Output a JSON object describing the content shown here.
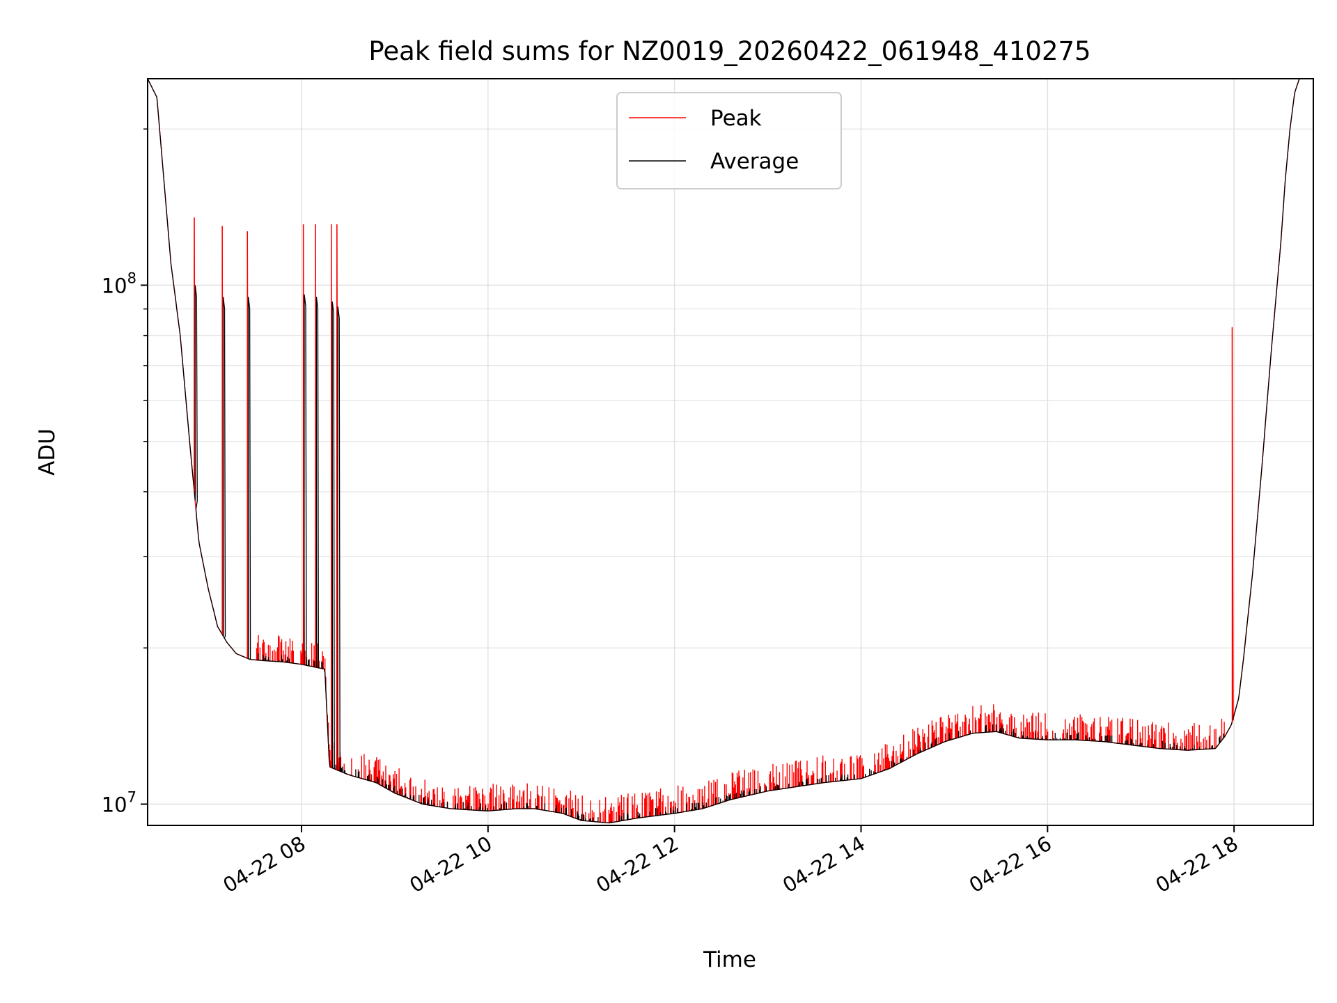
{
  "chart_data": {
    "type": "line",
    "title": "Peak field sums for NZ0019_20260422_061948_410275",
    "xlabel": "Time",
    "ylabel": "ADU",
    "yscale": "log",
    "ylim": [
      9100000,
      250000000
    ],
    "xlim_hours": [
      6.35,
      18.85
    ],
    "x_ticks": [
      {
        "hour": 8,
        "label": "04-22 08"
      },
      {
        "hour": 10,
        "label": "04-22 10"
      },
      {
        "hour": 12,
        "label": "04-22 12"
      },
      {
        "hour": 14,
        "label": "04-22 14"
      },
      {
        "hour": 16,
        "label": "04-22 16"
      },
      {
        "hour": 18,
        "label": "04-22 18"
      }
    ],
    "y_ticks": [
      {
        "value": 10000000,
        "base": "10",
        "exp": "7"
      },
      {
        "value": 100000000,
        "base": "10",
        "exp": "8"
      }
    ],
    "grid": true,
    "legend": {
      "location": "upper-center",
      "entries": [
        {
          "label": "Peak",
          "color": "#ff0000"
        },
        {
          "label": "Average",
          "color": "#000000"
        }
      ]
    },
    "series": [
      {
        "name": "Average",
        "color": "#000000",
        "x": [
          6.35,
          6.45,
          6.5,
          6.6,
          6.7,
          6.8,
          6.85,
          6.9,
          7.0,
          7.1,
          7.2,
          7.3,
          7.45,
          7.6,
          7.8,
          8.0,
          8.25,
          8.3,
          8.5,
          8.8,
          9.0,
          9.3,
          9.6,
          10.0,
          10.3,
          10.5,
          10.8,
          11.0,
          11.3,
          11.6,
          12.0,
          12.3,
          12.6,
          13.0,
          13.3,
          13.6,
          14.0,
          14.3,
          14.6,
          14.9,
          15.2,
          15.45,
          15.7,
          16.0,
          16.3,
          16.6,
          16.9,
          17.2,
          17.5,
          17.8,
          17.9,
          17.97,
          18.05,
          18.1,
          18.2,
          18.3,
          18.4,
          18.5,
          18.55,
          18.6,
          18.65,
          18.7,
          18.85
        ],
        "y": [
          250000000,
          230000000,
          180000000,
          110000000,
          80000000,
          50000000,
          40000000,
          32000000,
          26000000,
          22000000,
          20500000,
          19500000,
          19000000,
          18900000,
          18800000,
          18600000,
          18200000,
          11800000,
          11400000,
          11000000,
          10500000,
          10000000,
          9800000,
          9700000,
          9800000,
          9800000,
          9600000,
          9300000,
          9200000,
          9400000,
          9600000,
          9800000,
          10200000,
          10600000,
          10800000,
          11000000,
          11200000,
          11700000,
          12500000,
          13200000,
          13700000,
          13800000,
          13400000,
          13300000,
          13300000,
          13200000,
          13000000,
          12800000,
          12700000,
          12800000,
          13500000,
          14200000,
          16000000,
          19000000,
          28000000,
          45000000,
          75000000,
          120000000,
          160000000,
          200000000,
          235000000,
          250000000,
          250000000
        ]
      },
      {
        "name": "Peak",
        "color": "#ff0000",
        "spikes": [
          {
            "x": 6.85,
            "y": 135000000
          },
          {
            "x": 7.15,
            "y": 130000000
          },
          {
            "x": 7.42,
            "y": 127000000
          },
          {
            "x": 8.02,
            "y": 131000000
          },
          {
            "x": 8.15,
            "y": 131000000
          },
          {
            "x": 8.32,
            "y": 131000000
          },
          {
            "x": 8.38,
            "y": 131000000
          },
          {
            "x": 17.98,
            "y": 83000000
          }
        ],
        "noise_fraction": 0.1
      }
    ],
    "drops": [
      {
        "x": 6.86,
        "y": 100000000
      },
      {
        "x": 7.16,
        "y": 95000000
      },
      {
        "x": 7.43,
        "y": 95000000
      },
      {
        "x": 8.03,
        "y": 96000000
      },
      {
        "x": 8.16,
        "y": 95000000
      },
      {
        "x": 8.33,
        "y": 93000000
      },
      {
        "x": 8.39,
        "y": 91000000
      }
    ]
  }
}
